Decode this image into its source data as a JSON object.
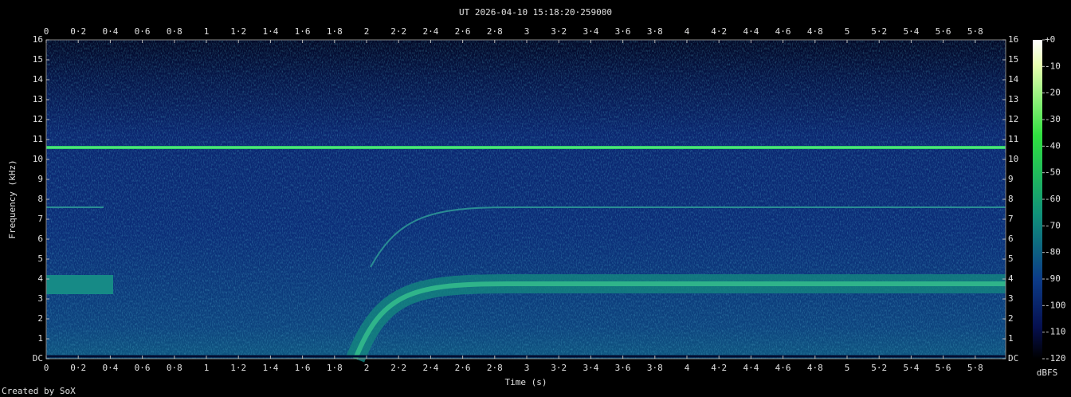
{
  "chart_data": {
    "type": "spectrogram",
    "title": "UT 2026-04-10 15:18:20·259000",
    "x_label": "Time (s)",
    "y_label": "Frequency (kHz)",
    "xlim": [
      0,
      5.99
    ],
    "xticks": [
      0,
      {
        "value": 0.2,
        "label": "0·2"
      },
      {
        "value": 0.4,
        "label": "0·4"
      },
      {
        "value": 0.6,
        "label": "0·6"
      },
      {
        "value": 0.8,
        "label": "0·8"
      },
      1,
      {
        "value": 1.2,
        "label": "1·2"
      },
      {
        "value": 1.4,
        "label": "1·4"
      },
      {
        "value": 1.6,
        "label": "1·6"
      },
      {
        "value": 1.8,
        "label": "1·8"
      },
      2,
      {
        "value": 2.2,
        "label": "2·2"
      },
      {
        "value": 2.4,
        "label": "2·4"
      },
      {
        "value": 2.6,
        "label": "2·6"
      },
      {
        "value": 2.8,
        "label": "2·8"
      },
      3,
      {
        "value": 3.2,
        "label": "3·2"
      },
      {
        "value": 3.4,
        "label": "3·4"
      },
      {
        "value": 3.6,
        "label": "3·6"
      },
      {
        "value": 3.8,
        "label": "3·8"
      },
      4,
      {
        "value": 4.2,
        "label": "4·2"
      },
      {
        "value": 4.4,
        "label": "4·4"
      },
      {
        "value": 4.6,
        "label": "4·6"
      },
      {
        "value": 4.8,
        "label": "4·8"
      },
      5,
      {
        "value": 5.2,
        "label": "5·2"
      },
      {
        "value": 5.4,
        "label": "5·4"
      },
      {
        "value": 5.6,
        "label": "5·6"
      },
      {
        "value": 5.8,
        "label": "5·8"
      }
    ],
    "ylim": [
      0,
      16
    ],
    "yticks": [
      {
        "value": 0,
        "label": "DC"
      },
      1,
      2,
      3,
      4,
      5,
      6,
      7,
      8,
      9,
      10,
      11,
      12,
      13,
      14,
      15,
      16
    ],
    "colorbar": {
      "label": "dBFS",
      "lim": [
        -120,
        0
      ],
      "ticks": [
        {
          "value": 0,
          "label": "+0"
        },
        -10,
        -20,
        -30,
        -40,
        -50,
        -60,
        -70,
        -80,
        -90,
        -100,
        -110,
        -120
      ]
    },
    "footer": "Created by SoX"
  }
}
